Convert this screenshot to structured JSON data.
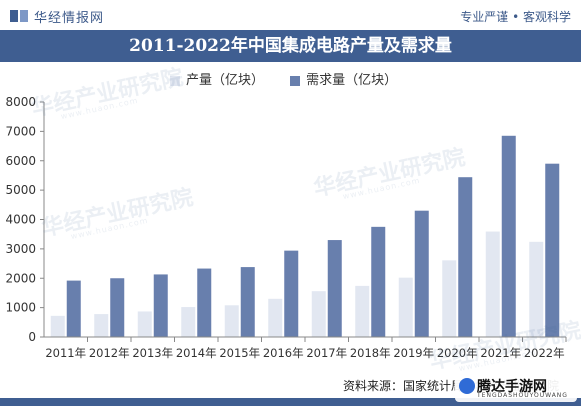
{
  "header": {
    "brand": "华经情报网",
    "slogan": "专业严谨 • 客观科学"
  },
  "watermark": {
    "text": "华经产业研究院",
    "sub": "www.huaon.com"
  },
  "footer": {
    "source": "资料来源：国家统计局，华经产业研究院",
    "site_badge": "腾达手游网",
    "site_badge_sub": "TENGDASHOUYOUWANG"
  },
  "colors": {
    "brand": "#3f5e91",
    "production": "#e2e7f1",
    "demand": "#687fad"
  },
  "chart_data": {
    "type": "bar",
    "title": "2011-2022年中国集成电路产量及需求量",
    "categories": [
      "2011年",
      "2012年",
      "2013年",
      "2014年",
      "2015年",
      "2016年",
      "2017年",
      "2018年",
      "2019年",
      "2020年",
      "2021年",
      "2022年"
    ],
    "series": [
      {
        "name": "产量（亿块）",
        "values": [
          720,
          780,
          870,
          1020,
          1080,
          1300,
          1560,
          1740,
          2020,
          2610,
          3590,
          3240
        ]
      },
      {
        "name": "需求量（亿块）",
        "values": [
          1920,
          2000,
          2130,
          2330,
          2380,
          2940,
          3300,
          3750,
          4300,
          5440,
          6850,
          5900
        ]
      }
    ],
    "ylim": [
      0,
      8000
    ],
    "yticks": [
      0,
      1000,
      2000,
      3000,
      4000,
      5000,
      6000,
      7000,
      8000
    ],
    "grid": false,
    "legend": "top"
  }
}
